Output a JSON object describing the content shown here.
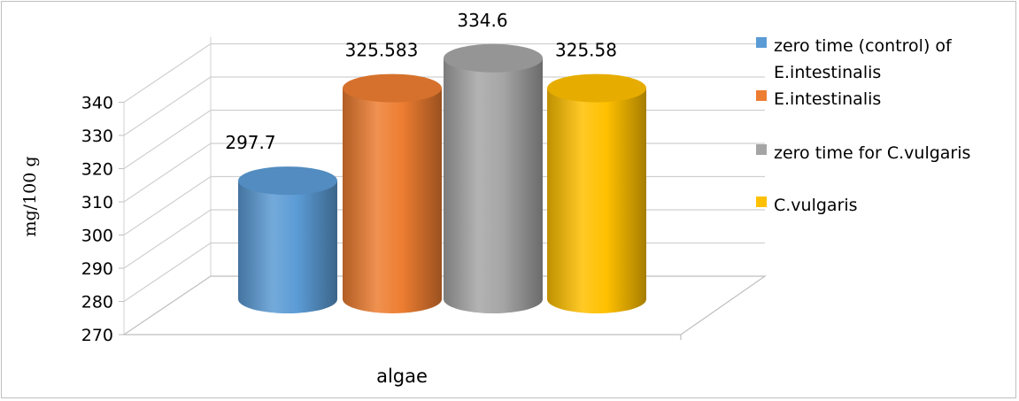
{
  "chart_data": {
    "type": "bar",
    "style": "3d-cylinder",
    "title": "",
    "xlabel": "algae",
    "ylabel": "mg/100 g",
    "ylim": [
      270,
      340
    ],
    "yticks": [
      270,
      280,
      290,
      300,
      310,
      320,
      330,
      340
    ],
    "grid": true,
    "legend_position": "right",
    "series": [
      {
        "name": "zero time (control) of E.intestinalis",
        "value": 297.7,
        "label": "297.7",
        "color": "#5b9bd5"
      },
      {
        "name": "E.intestinalis",
        "value": 325.583,
        "label": "325.583",
        "color": "#ed7d31"
      },
      {
        "name": "zero time for C.vulgaris",
        "value": 334.6,
        "label": "334.6",
        "color": "#a5a5a5"
      },
      {
        "name": "C.vulgaris",
        "value": 325.58,
        "label": "325.58",
        "color": "#ffc000"
      }
    ]
  }
}
